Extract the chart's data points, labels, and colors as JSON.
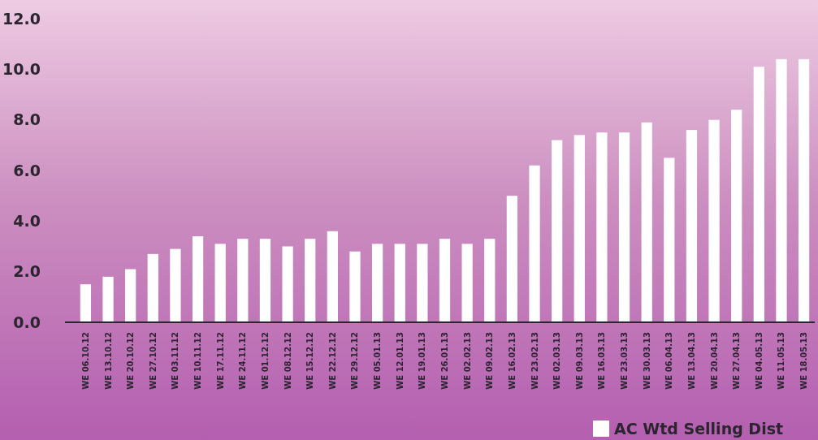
{
  "chart_data": {
    "type": "bar",
    "categories": [
      "WE 06.10.12",
      "WE 13.10.12",
      "WE 20.10.12",
      "WE 27.10.12",
      "WE 03.11.12",
      "WE 10.11.12",
      "WE 17.11.12",
      "WE 24.11.12",
      "WE 01.12.12",
      "WE 08.12.12",
      "WE 15.12.12",
      "WE 22.12.12",
      "WE 29.12.12",
      "WE 05.01.13",
      "WE 12.01.13",
      "WE 19.01.13",
      "WE 26.01.13",
      "WE 02.02.13",
      "WE 09.02.13",
      "WE 16.02.13",
      "WE 23.02.13",
      "WE 02.03.13",
      "WE 09.03.13",
      "WE 16.03.13",
      "WE 23.03.13",
      "WE 30.03.13",
      "WE 06.04.13",
      "WE 13.04.13",
      "WE 20.04.13",
      "WE 27.04.13",
      "WE 04.05.13",
      "WE 11.05.13",
      "WE 18.05.13"
    ],
    "series": [
      {
        "name": "AC Wtd Selling Dist",
        "color": "#ffffff",
        "values": [
          1.5,
          1.8,
          2.1,
          2.7,
          2.9,
          3.4,
          3.1,
          3.3,
          3.3,
          3.0,
          3.3,
          3.6,
          2.8,
          3.1,
          3.1,
          3.1,
          3.3,
          3.1,
          3.3,
          5.0,
          6.2,
          7.2,
          7.4,
          7.5,
          7.5,
          7.9,
          6.5,
          7.6,
          8.0,
          8.4,
          10.1,
          10.4,
          10.4
        ]
      }
    ],
    "ylim": [
      0,
      12
    ],
    "yticks": [
      {
        "value": 0,
        "label": "0.0"
      },
      {
        "value": 2,
        "label": "2.0"
      },
      {
        "value": 4,
        "label": "4.0"
      },
      {
        "value": 6,
        "label": "6.0"
      },
      {
        "value": 8,
        "label": "8.0"
      },
      {
        "value": 10,
        "label": "10.0"
      },
      {
        "value": 12,
        "label": "12.0"
      }
    ],
    "grid": false,
    "legend": "bottom right"
  }
}
